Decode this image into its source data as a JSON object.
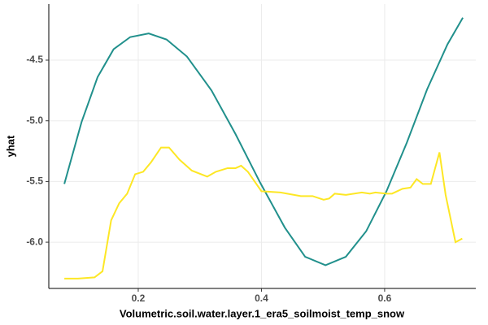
{
  "chart_data": {
    "type": "line",
    "x_label": "Volumetric.soil.water.layer.1_era5_soilmoist_temp_snow",
    "y_label": "yhat",
    "xlim": [
      0.0548,
      0.748
    ],
    "xticks": [
      0.2,
      0.4,
      0.6
    ],
    "ylim": [
      -6.381,
      -4.038
    ],
    "yticks": [
      -4.5,
      {
        "value": -5,
        "label": "-5.0"
      },
      -5.5,
      {
        "value": -6,
        "label": "-6.0"
      }
    ],
    "grid": true,
    "series": [
      {
        "color": "#21908c",
        "x": [
          0.08,
          0.108,
          0.134,
          0.16,
          0.187,
          0.217,
          0.246,
          0.279,
          0.319,
          0.358,
          0.398,
          0.438,
          0.471,
          0.504,
          0.537,
          0.57,
          0.603,
          0.636,
          0.669,
          0.702,
          0.727
        ],
        "values": [
          -5.52,
          -5.01,
          -4.64,
          -4.41,
          -4.31,
          -4.28,
          -4.33,
          -4.47,
          -4.75,
          -5.11,
          -5.51,
          -5.88,
          -6.12,
          -6.19,
          -6.12,
          -5.91,
          -5.58,
          -5.18,
          -4.74,
          -4.37,
          -4.15
        ]
      },
      {
        "color": "#fde725",
        "x": [
          0.08,
          0.102,
          0.129,
          0.142,
          0.156,
          0.169,
          0.182,
          0.195,
          0.208,
          0.221,
          0.237,
          0.25,
          0.267,
          0.287,
          0.312,
          0.326,
          0.345,
          0.358,
          0.367,
          0.378,
          0.4,
          0.431,
          0.464,
          0.483,
          0.501,
          0.51,
          0.519,
          0.537,
          0.563,
          0.576,
          0.585,
          0.603,
          0.612,
          0.629,
          0.642,
          0.652,
          0.662,
          0.675,
          0.689,
          0.699,
          0.715,
          0.726
        ],
        "values": [
          -6.3,
          -6.3,
          -6.29,
          -6.24,
          -5.82,
          -5.68,
          -5.6,
          -5.44,
          -5.42,
          -5.34,
          -5.22,
          -5.22,
          -5.32,
          -5.41,
          -5.46,
          -5.42,
          -5.39,
          -5.39,
          -5.37,
          -5.42,
          -5.58,
          -5.59,
          -5.62,
          -5.62,
          -5.65,
          -5.64,
          -5.6,
          -5.61,
          -5.59,
          -5.6,
          -5.59,
          -5.6,
          -5.6,
          -5.56,
          -5.55,
          -5.48,
          -5.52,
          -5.52,
          -5.26,
          -5.61,
          -6.0,
          -5.97
        ]
      }
    ]
  }
}
